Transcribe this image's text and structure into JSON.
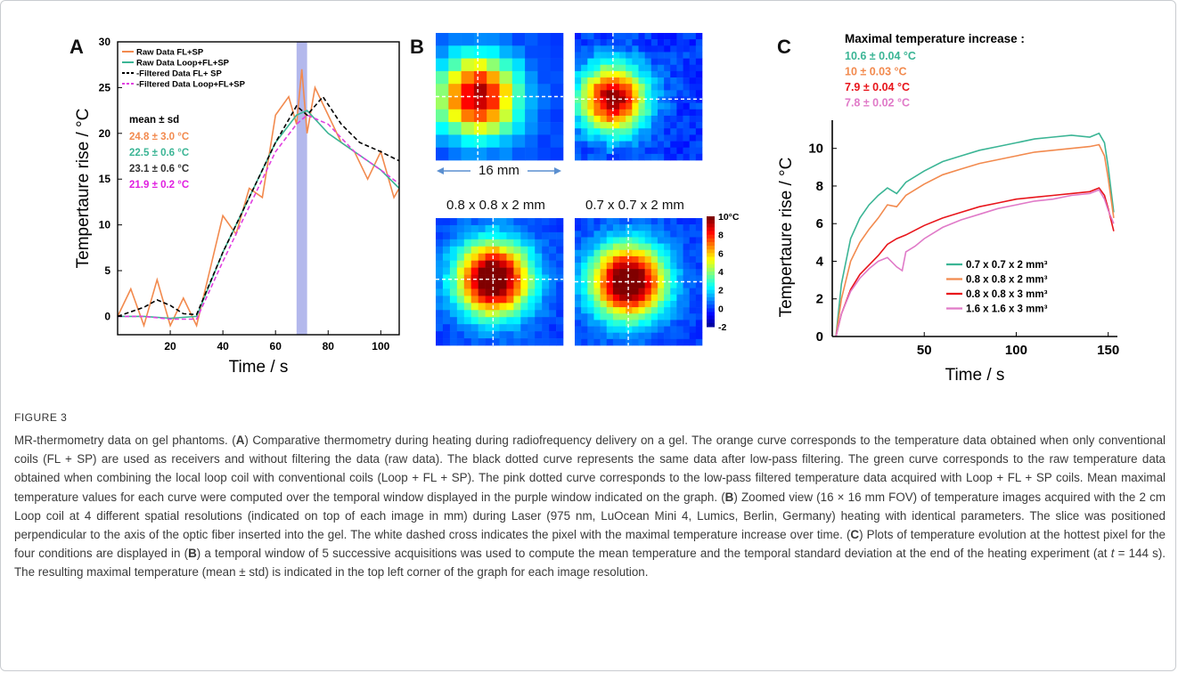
{
  "panel_a": {
    "letter": "A",
    "xlabel": "Time / s",
    "ylabel": "Tempertaure rise / °C",
    "x_ticks": [
      "20",
      "40",
      "60",
      "80",
      "100"
    ],
    "y_ticks": [
      "0",
      "5",
      "10",
      "15",
      "20",
      "25",
      "30"
    ],
    "legend": [
      {
        "label": "Raw Data FL+SP",
        "color": "#f28a4e",
        "dash": "solid"
      },
      {
        "label": "Raw Data Loop+FL+SP",
        "color": "#3bb595",
        "dash": "solid"
      },
      {
        "label": "-Filtered Data FL+ SP",
        "color": "#000000",
        "dash": "dashed"
      },
      {
        "label": "-Filtered Data Loop+FL+SP",
        "color": "#e040e0",
        "dash": "dashed"
      }
    ],
    "stats_title": "mean ± sd",
    "stats": [
      {
        "text": "24.8 ± 3.0 °C",
        "color": "#f28a4e"
      },
      {
        "text": "22.5 ± 0.6 °C",
        "color": "#3bb595"
      },
      {
        "text": "23.1 ± 0.6 °C",
        "color": "#333333"
      },
      {
        "text": "21.9 ± 0.2 °C",
        "color": "#e020e0"
      }
    ],
    "window_color": "#9aa0e6"
  },
  "panel_b": {
    "letter": "B",
    "scale_label": "16 mm",
    "labels": [
      "0.8 x 0.8 x 2 mm",
      "0.7 x 0.7 x 2 mm"
    ],
    "colorbar_ticks": [
      "10°C",
      "8",
      "6",
      "4",
      "2",
      "0",
      "-2"
    ]
  },
  "panel_c": {
    "letter": "C",
    "header": "Maximal temperature increase :",
    "maxima": [
      {
        "text": "10.6 ± 0.04 °C",
        "color": "#3bb595"
      },
      {
        "text": "10 ± 0.03 °C",
        "color": "#f28a4e"
      },
      {
        "text": "7.9 ± 0.04 °C",
        "color": "#e8151b"
      },
      {
        "text": "7.8 ± 0.02 °C",
        "color": "#e07ac8"
      }
    ],
    "xlabel": "Time / s",
    "ylabel": "Tempertaure rise / °C",
    "x_ticks": [
      "50",
      "100",
      "150"
    ],
    "y_ticks": [
      "0",
      "2",
      "4",
      "6",
      "8",
      "10"
    ],
    "legend": [
      {
        "label": "0.7 x 0.7 x 2 mm³",
        "color": "#3bb595"
      },
      {
        "label": "0.8 x 0.8 x 2 mm³",
        "color": "#f28a4e"
      },
      {
        "label": "0.8 x 0.8 x 3 mm³",
        "color": "#e8151b"
      },
      {
        "label": "1.6 x 1.6 x 3 mm³",
        "color": "#e07ac8"
      }
    ]
  },
  "chart_data": [
    {
      "type": "line",
      "title": "",
      "xlabel": "Time / s",
      "ylabel": "Tempertaure rise / °C",
      "xlim": [
        0,
        107
      ],
      "ylim": [
        -2,
        30
      ],
      "series": [
        {
          "name": "Raw Data FL+SP",
          "x": [
            0,
            5,
            10,
            15,
            20,
            25,
            30,
            35,
            40,
            45,
            50,
            55,
            60,
            65,
            68,
            70,
            72,
            75,
            80,
            85,
            90,
            95,
            100,
            105,
            107
          ],
          "y": [
            0,
            3,
            -1,
            4,
            -1,
            2,
            -1,
            5,
            11,
            9,
            14,
            13,
            22,
            24,
            21,
            27,
            20,
            25,
            22,
            19,
            18,
            15,
            18,
            13,
            14
          ]
        },
        {
          "name": "Raw Data Loop+FL+SP",
          "x": [
            0,
            10,
            20,
            30,
            40,
            50,
            60,
            68,
            72,
            80,
            90,
            100,
            107
          ],
          "y": [
            0,
            0,
            -0.2,
            0,
            7,
            13,
            19,
            22,
            22.5,
            20,
            18,
            16,
            14
          ]
        },
        {
          "name": "-Filtered Data FL+ SP",
          "x": [
            0,
            5,
            10,
            15,
            20,
            25,
            30,
            40,
            50,
            60,
            68,
            72,
            78,
            85,
            92,
            100,
            107
          ],
          "y": [
            0,
            0.5,
            1,
            1.8,
            1.2,
            0.3,
            0.2,
            7,
            13,
            19,
            23,
            22,
            24,
            21,
            19,
            18,
            17
          ]
        },
        {
          "name": "-Filtered Data Loop+FL+SP",
          "x": [
            0,
            10,
            20,
            30,
            40,
            50,
            60,
            68,
            72,
            80,
            90,
            100,
            107
          ],
          "y": [
            0,
            0,
            -0.3,
            -0.3,
            6,
            12,
            18,
            21,
            22,
            21,
            18,
            16,
            14.5
          ]
        }
      ],
      "highlight_window_x": [
        68,
        72
      ]
    },
    {
      "type": "line",
      "title": "",
      "xlabel": "Time / s",
      "ylabel": "Tempertaure rise / °C",
      "xlim": [
        0,
        155
      ],
      "ylim": [
        0,
        11.5
      ],
      "series": [
        {
          "name": "0.7 x 0.7 x 2 mm³",
          "x": [
            2,
            5,
            10,
            15,
            20,
            25,
            30,
            35,
            40,
            50,
            60,
            70,
            80,
            90,
            100,
            110,
            120,
            130,
            140,
            145,
            148,
            150,
            153
          ],
          "y": [
            0,
            2.8,
            5.2,
            6.3,
            7.0,
            7.5,
            7.9,
            7.6,
            8.2,
            8.8,
            9.3,
            9.6,
            9.9,
            10.1,
            10.3,
            10.5,
            10.6,
            10.7,
            10.6,
            10.8,
            10.3,
            9.0,
            6.6
          ]
        },
        {
          "name": "0.8 x 0.8 x 2 mm³",
          "x": [
            2,
            5,
            10,
            15,
            20,
            25,
            30,
            35,
            40,
            50,
            60,
            70,
            80,
            90,
            100,
            110,
            120,
            130,
            140,
            145,
            148,
            150,
            153
          ],
          "y": [
            0,
            2.0,
            4.0,
            5.0,
            5.7,
            6.3,
            7.0,
            6.9,
            7.5,
            8.1,
            8.6,
            8.9,
            9.2,
            9.4,
            9.6,
            9.8,
            9.9,
            10.0,
            10.1,
            10.2,
            9.6,
            8.4,
            6.3
          ]
        },
        {
          "name": "0.8 x 0.8 x 3 mm³",
          "x": [
            2,
            5,
            10,
            15,
            20,
            25,
            30,
            35,
            40,
            50,
            60,
            70,
            80,
            90,
            100,
            110,
            120,
            130,
            140,
            145,
            148,
            150,
            153
          ],
          "y": [
            0,
            1.2,
            2.5,
            3.3,
            3.8,
            4.3,
            4.9,
            5.2,
            5.4,
            5.9,
            6.3,
            6.6,
            6.9,
            7.1,
            7.3,
            7.4,
            7.5,
            7.6,
            7.7,
            7.9,
            7.5,
            6.8,
            5.6
          ]
        },
        {
          "name": "1.6 x 1.6 x 3 mm³",
          "x": [
            2,
            5,
            10,
            15,
            20,
            25,
            30,
            35,
            38,
            40,
            45,
            50,
            60,
            70,
            80,
            90,
            100,
            110,
            120,
            130,
            140,
            145,
            148,
            150,
            153
          ],
          "y": [
            0,
            1.2,
            2.4,
            3.1,
            3.6,
            4.0,
            4.2,
            3.7,
            3.5,
            4.5,
            4.8,
            5.2,
            5.8,
            6.2,
            6.5,
            6.8,
            7.0,
            7.2,
            7.3,
            7.5,
            7.6,
            7.8,
            7.3,
            6.7,
            6.0
          ]
        }
      ]
    }
  ],
  "caption": {
    "label": "FIGURE 3",
    "parts": [
      {
        "text": "MR-thermometry data on gel phantoms. (",
        "b": false,
        "i": false
      },
      {
        "text": "A",
        "b": true,
        "i": false
      },
      {
        "text": ") Comparative thermometry during heating during radiofrequency delivery on a gel. The orange curve corresponds to the temperature data obtained when only conventional coils (FL + SP) are used as receivers and without filtering the data (raw data). The black dotted curve represents the same data after low-pass filtering. The green curve corresponds to the raw temperature data obtained when combining the local loop coil with conventional coils (Loop + FL + SP). The pink dotted curve corresponds to the low-pass filtered temperature data acquired with Loop + FL + SP coils. Mean maximal temperature values for each curve were computed over the temporal window displayed in the purple window indicated on the graph. (",
        "b": false,
        "i": false
      },
      {
        "text": "B",
        "b": true,
        "i": false
      },
      {
        "text": ") Zoomed view (16 × 16 mm FOV) of temperature images acquired with the 2 cm Loop coil at 4 different spatial resolutions (indicated on top of each image in mm) during Laser (975 nm, LuOcean Mini 4, Lumics, Berlin, Germany) heating with identical parameters. The slice was positioned perpendicular to the axis of the optic fiber inserted into the gel. The white dashed cross indicates the pixel with the maximal temperature increase over time. (",
        "b": false,
        "i": false
      },
      {
        "text": "C",
        "b": true,
        "i": false
      },
      {
        "text": ") Plots of temperature evolution at the hottest pixel for the four conditions are displayed in (",
        "b": false,
        "i": false
      },
      {
        "text": "B",
        "b": true,
        "i": false
      },
      {
        "text": ") a temporal window of 5 successive acquisitions was used to compute the mean temperature and the temporal standard deviation at the end of the heating experiment (at ",
        "b": false,
        "i": false
      },
      {
        "text": "t",
        "b": false,
        "i": true
      },
      {
        "text": " = 144 s). The resulting maximal temperature (mean ± std) is indicated in the top left corner of the graph for each image resolution.",
        "b": false,
        "i": false
      }
    ]
  }
}
